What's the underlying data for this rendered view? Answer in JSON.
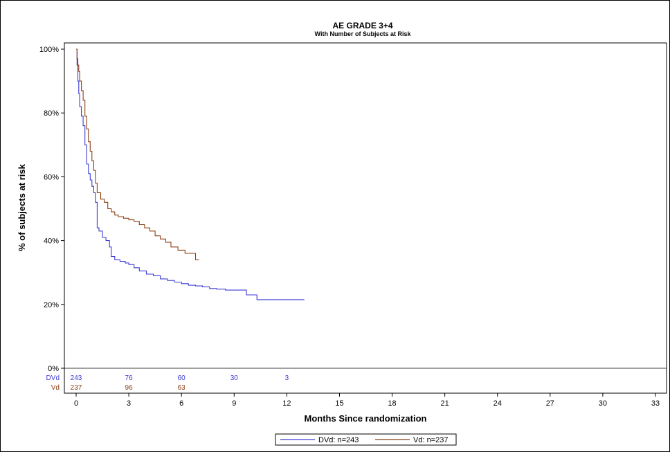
{
  "chart_data": {
    "type": "line",
    "subtype": "kaplan-meier-step",
    "title": "AE GRADE 3+4",
    "subtitle": "With Number of Subjects at Risk",
    "xlabel": "Months Since randomization",
    "ylabel": "% of subjects at risk",
    "xlim": [
      0,
      33
    ],
    "ylim": [
      0,
      100
    ],
    "x_ticks": [
      0,
      3,
      6,
      9,
      12,
      15,
      18,
      21,
      24,
      27,
      30,
      33
    ],
    "y_ticks": [
      0,
      20,
      40,
      60,
      80,
      100
    ],
    "y_tick_labels": [
      "0%",
      "20%",
      "40%",
      "60%",
      "80%",
      "100%"
    ],
    "grid": false,
    "legend_position": "bottom-center",
    "series": [
      {
        "name": "DVd: n=243",
        "color": "#3a3ad6",
        "x": [
          0,
          0.05,
          0.1,
          0.15,
          0.2,
          0.3,
          0.4,
          0.5,
          0.6,
          0.7,
          0.8,
          0.9,
          1.0,
          1.1,
          1.2,
          1.3,
          1.5,
          1.7,
          1.9,
          2.0,
          2.2,
          2.5,
          2.8,
          3.0,
          3.3,
          3.6,
          4.0,
          4.4,
          4.8,
          5.2,
          5.6,
          6.0,
          6.4,
          6.8,
          7.2,
          7.6,
          8.0,
          8.5,
          9.0,
          9.5,
          9.7,
          10.0,
          10.3,
          10.6,
          11.0,
          11.5,
          12.0,
          12.5,
          13.0
        ],
        "y": [
          100,
          95,
          90,
          86,
          82,
          79,
          76,
          70,
          64,
          61,
          59,
          57,
          55,
          52,
          44,
          43,
          41,
          40,
          38,
          35,
          34,
          33.5,
          33,
          32.5,
          31.5,
          30.5,
          29.5,
          29,
          28,
          27.5,
          27,
          26.5,
          26,
          25.8,
          25.5,
          25,
          24.8,
          24.5,
          24.5,
          24.5,
          23,
          23,
          21.5,
          21.5,
          21.5,
          21.5,
          21.5,
          21.5,
          21.5
        ]
      },
      {
        "name": "Vd: n=237",
        "color": "#8b3e10",
        "x": [
          0,
          0.05,
          0.1,
          0.15,
          0.2,
          0.3,
          0.4,
          0.5,
          0.6,
          0.7,
          0.8,
          0.9,
          1.0,
          1.1,
          1.2,
          1.4,
          1.6,
          1.8,
          2.0,
          2.2,
          2.4,
          2.7,
          3.0,
          3.3,
          3.6,
          3.9,
          4.2,
          4.5,
          4.8,
          5.1,
          5.4,
          5.8,
          6.2,
          6.5,
          6.8,
          7.0
        ],
        "y": [
          100,
          97,
          95,
          93,
          90,
          87,
          84,
          79,
          75,
          71,
          68,
          65,
          62,
          58,
          55,
          53,
          52,
          50,
          49,
          48,
          47.5,
          47,
          46.5,
          46,
          45,
          44,
          43,
          41.5,
          40.5,
          39.5,
          38,
          37,
          36,
          36,
          34,
          34
        ]
      }
    ],
    "at_risk": {
      "times": [
        0,
        3,
        6,
        9,
        12
      ],
      "rows": [
        {
          "label": "DVd",
          "color": "#3a3ad6",
          "counts": [
            "243",
            "76",
            "60",
            "30",
            "3"
          ]
        },
        {
          "label": "Vd",
          "color": "#8b3e10",
          "counts": [
            "237",
            "96",
            "63",
            "",
            ""
          ]
        }
      ]
    }
  }
}
